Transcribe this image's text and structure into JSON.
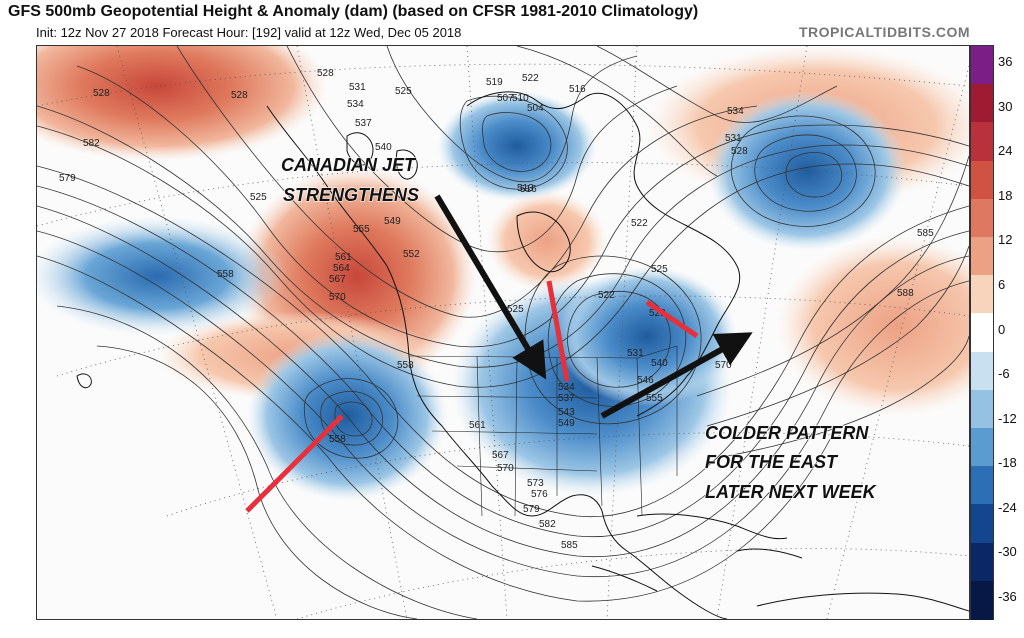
{
  "header": {
    "title": "GFS 500mb Geopotential Height & Anomaly (dam) (based on CFSR 1981-2010 Climatology)",
    "subtitle": "Init: 12z Nov 27 2018   Forecast Hour: [192]   valid at 12z Wed, Dec 05 2018",
    "credit": "TROPICALTIDBITS.COM"
  },
  "annotations": {
    "jet_line1": "CANADIAN JET",
    "jet_line2": "STRENGTHENS",
    "pattern_line1": "COLDER PATTERN",
    "pattern_line2": "FOR THE EAST",
    "pattern_line3": "LATER NEXT WEEK"
  },
  "contour_labels": [
    {
      "text": "582"
    },
    {
      "text": "579"
    },
    {
      "text": "528"
    },
    {
      "text": "528"
    },
    {
      "text": "531"
    },
    {
      "text": "534"
    },
    {
      "text": "537"
    },
    {
      "text": "540"
    },
    {
      "text": "525"
    },
    {
      "text": "549"
    },
    {
      "text": "555"
    },
    {
      "text": "561"
    },
    {
      "text": "564"
    },
    {
      "text": "567"
    },
    {
      "text": "570"
    },
    {
      "text": "558"
    },
    {
      "text": "552"
    },
    {
      "text": "519"
    },
    {
      "text": "522"
    },
    {
      "text": "516"
    },
    {
      "text": "507"
    },
    {
      "text": "510"
    },
    {
      "text": "504"
    },
    {
      "text": "513"
    },
    {
      "text": "516"
    },
    {
      "text": "522"
    },
    {
      "text": "525"
    },
    {
      "text": "525"
    },
    {
      "text": "522"
    },
    {
      "text": "528"
    },
    {
      "text": "531"
    },
    {
      "text": "534"
    },
    {
      "text": "537"
    },
    {
      "text": "543"
    },
    {
      "text": "549"
    },
    {
      "text": "555"
    },
    {
      "text": "540"
    },
    {
      "text": "546"
    },
    {
      "text": "570"
    },
    {
      "text": "558"
    },
    {
      "text": "561"
    },
    {
      "text": "567"
    },
    {
      "text": "570"
    },
    {
      "text": "573"
    },
    {
      "text": "576"
    },
    {
      "text": "579"
    },
    {
      "text": "582"
    },
    {
      "text": "585"
    },
    {
      "text": "558"
    },
    {
      "text": "534"
    },
    {
      "text": "531"
    },
    {
      "text": "528"
    },
    {
      "text": "585"
    },
    {
      "text": "588"
    },
    {
      "text": "528"
    },
    {
      "text": "525"
    }
  ],
  "legend": {
    "labels": [
      "36",
      "30",
      "24",
      "18",
      "12",
      "6",
      "0",
      "-6",
      "-12",
      "-18",
      "-24",
      "-30",
      "-36"
    ],
    "colors": [
      "#7b1f86",
      "#9e1b32",
      "#b9313a",
      "#cf5242",
      "#de7860",
      "#eda184",
      "#f8d4bc",
      "#ffffff",
      "#c8e0ef",
      "#95c2e2",
      "#5a9bd0",
      "#2d6fb4",
      "#14468f",
      "#0c2766",
      "#071847"
    ]
  },
  "colors": {
    "warm_anomaly": "#e9957a",
    "cold_anomaly": "#5a9bd0",
    "arrow_black": "#111111",
    "marker_red": "#e8303a"
  }
}
